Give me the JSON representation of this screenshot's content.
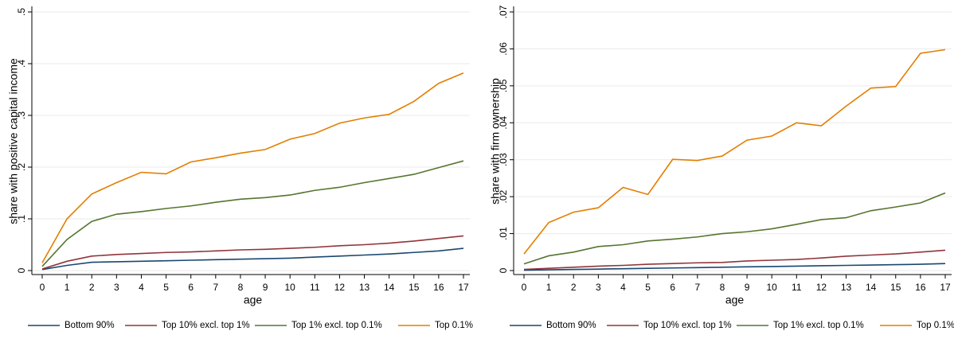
{
  "chart_data": [
    {
      "type": "line",
      "xlabel": "age",
      "ylabel": "share with positive capital income",
      "x": [
        0,
        1,
        2,
        3,
        4,
        5,
        6,
        7,
        8,
        9,
        10,
        11,
        12,
        13,
        14,
        15,
        16,
        17
      ],
      "xlim": [
        0,
        17
      ],
      "xticks": [
        0,
        1,
        2,
        3,
        4,
        5,
        6,
        7,
        8,
        9,
        10,
        11,
        12,
        13,
        14,
        15,
        16,
        17
      ],
      "ylim": [
        0,
        0.5
      ],
      "yticks": [
        0,
        {
          "value": 0.1,
          "label": ".1"
        },
        {
          "value": 0.2,
          "label": ".2"
        },
        {
          "value": 0.3,
          "label": ".3"
        },
        {
          "value": 0.4,
          "label": ".4"
        },
        {
          "value": 0.5,
          "label": ".5"
        }
      ],
      "grid": true,
      "series": [
        {
          "name": "Bottom 90%",
          "color": "#1a476f",
          "values": [
            0.002,
            0.01,
            0.016,
            0.017,
            0.018,
            0.019,
            0.02,
            0.021,
            0.022,
            0.023,
            0.024,
            0.026,
            0.028,
            0.03,
            0.032,
            0.035,
            0.038,
            0.043
          ]
        },
        {
          "name": "Top 10% excl. top 1%",
          "color": "#90353b",
          "values": [
            0.003,
            0.018,
            0.028,
            0.031,
            0.033,
            0.035,
            0.036,
            0.038,
            0.04,
            0.041,
            0.043,
            0.045,
            0.048,
            0.05,
            0.053,
            0.057,
            0.062,
            0.067
          ]
        },
        {
          "name": "Top 1% excl. top 0.1%",
          "color": "#55752f",
          "values": [
            0.008,
            0.06,
            0.095,
            0.109,
            0.114,
            0.12,
            0.125,
            0.132,
            0.138,
            0.141,
            0.146,
            0.155,
            0.161,
            0.17,
            0.178,
            0.186,
            0.199,
            0.212
          ]
        },
        {
          "name": "Top 0.1%",
          "color": "#e37e00",
          "values": [
            0.015,
            0.1,
            0.148,
            0.17,
            0.19,
            0.187,
            0.21,
            0.218,
            0.227,
            0.234,
            0.254,
            0.265,
            0.285,
            0.295,
            0.302,
            0.327,
            0.362,
            0.382
          ]
        }
      ]
    },
    {
      "type": "line",
      "xlabel": "age",
      "ylabel": "share with firm ownership",
      "x": [
        0,
        1,
        2,
        3,
        4,
        5,
        6,
        7,
        8,
        9,
        10,
        11,
        12,
        13,
        14,
        15,
        16,
        17
      ],
      "xlim": [
        0,
        17
      ],
      "xticks": [
        0,
        1,
        2,
        3,
        4,
        5,
        6,
        7,
        8,
        9,
        10,
        11,
        12,
        13,
        14,
        15,
        16,
        17
      ],
      "ylim": [
        0,
        0.07
      ],
      "yticks": [
        0,
        {
          "value": 0.01,
          "label": ".01"
        },
        {
          "value": 0.02,
          "label": ".02"
        },
        {
          "value": 0.03,
          "label": ".03"
        },
        {
          "value": 0.04,
          "label": ".04"
        },
        {
          "value": 0.05,
          "label": ".05"
        },
        {
          "value": 0.06,
          "label": ".06"
        },
        {
          "value": 0.07,
          "label": ".07"
        }
      ],
      "grid": true,
      "series": [
        {
          "name": "Bottom 90%",
          "color": "#1a476f",
          "values": [
            0.0001,
            0.0002,
            0.0003,
            0.0004,
            0.0005,
            0.0006,
            0.0007,
            0.0008,
            0.0009,
            0.001,
            0.0011,
            0.0012,
            0.0013,
            0.0014,
            0.0015,
            0.0016,
            0.0017,
            0.0019
          ]
        },
        {
          "name": "Top 10% excl. top 1%",
          "color": "#90353b",
          "values": [
            0.0003,
            0.0006,
            0.0009,
            0.0012,
            0.0014,
            0.0017,
            0.0019,
            0.0021,
            0.0022,
            0.0026,
            0.0028,
            0.003,
            0.0034,
            0.0039,
            0.0042,
            0.0045,
            0.005,
            0.0055
          ]
        },
        {
          "name": "Top 1% excl. top 0.1%",
          "color": "#55752f",
          "values": [
            0.0018,
            0.004,
            0.005,
            0.0065,
            0.007,
            0.008,
            0.0085,
            0.0091,
            0.01,
            0.0105,
            0.0113,
            0.0125,
            0.0138,
            0.0143,
            0.0162,
            0.0172,
            0.0183,
            0.021
          ]
        },
        {
          "name": "Top 0.1%",
          "color": "#e37e00",
          "values": [
            0.0045,
            0.013,
            0.0158,
            0.017,
            0.0225,
            0.0206,
            0.0301,
            0.0298,
            0.031,
            0.0353,
            0.0364,
            0.04,
            0.0392,
            0.0445,
            0.0494,
            0.0498,
            0.0588,
            0.0598
          ]
        }
      ]
    }
  ]
}
